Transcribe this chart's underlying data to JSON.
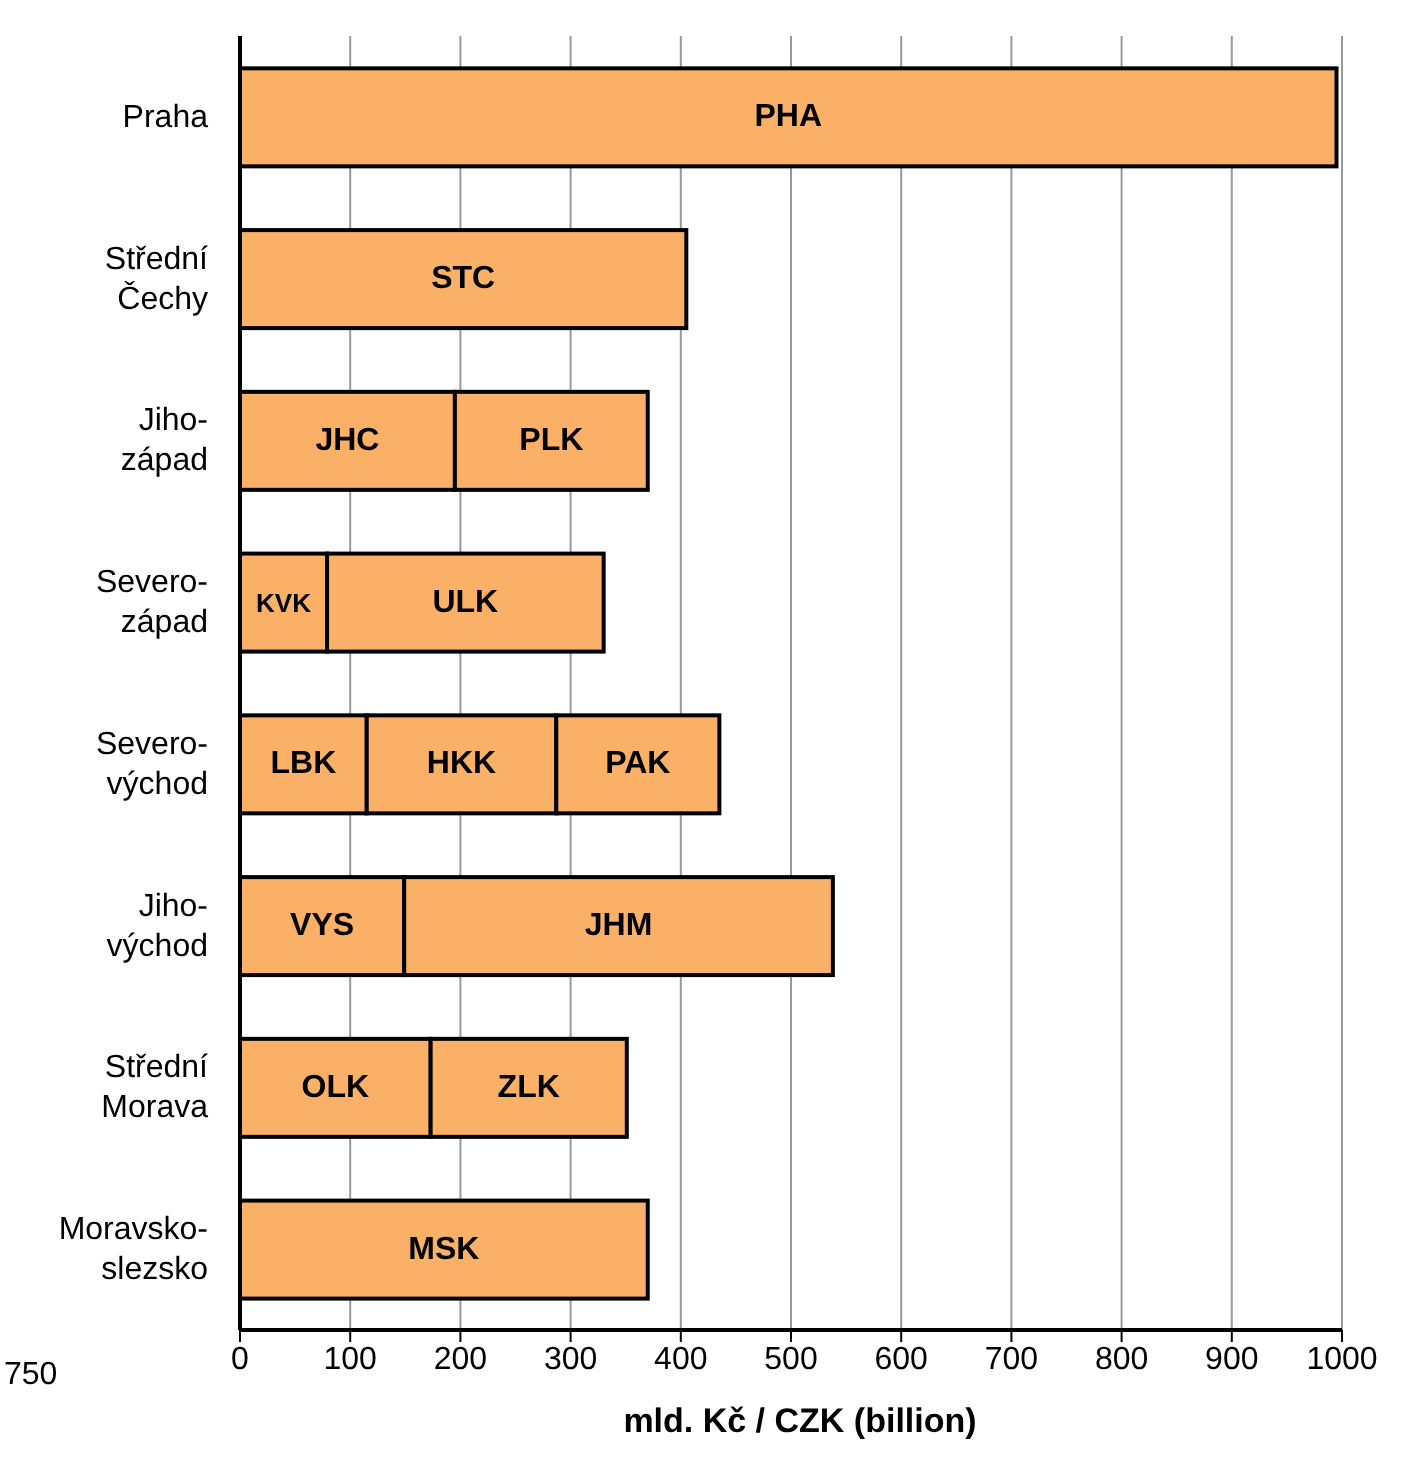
{
  "chart_data": {
    "type": "bar",
    "orientation": "horizontal",
    "stacked": true,
    "xlabel": "mld. Kč / CZK (billion)",
    "categories": [
      "Praha",
      "Střední Čechy",
      "Jiho- západ",
      "Severo- západ",
      "Severo- východ",
      "Jiho- východ",
      "Střední Morava",
      "Moravsko- slezsko"
    ],
    "series": [
      {
        "color": "#fbb068",
        "values": [
          995,
          405,
          195,
          79,
          115,
          149,
          173,
          370
        ],
        "value_labels": [
          "PHA",
          "STC",
          "JHC",
          "KVK",
          "LBK",
          "VYS",
          "OLK",
          "MSK"
        ]
      },
      {
        "color": "#fbb068",
        "values": [
          null,
          null,
          175,
          251,
          172,
          389,
          178,
          null
        ],
        "value_labels": [
          null,
          null,
          "PLK",
          "ULK",
          "HKK",
          "JHM",
          "ZLK",
          null
        ]
      },
      {
        "color": "#fbb068",
        "values": [
          null,
          null,
          null,
          null,
          148,
          null,
          null,
          null
        ],
        "value_labels": [
          null,
          null,
          null,
          null,
          "PAK",
          null,
          null,
          null
        ]
      }
    ],
    "xlim": [
      0,
      1000
    ],
    "xticks": [
      0,
      100,
      200,
      300,
      400,
      500,
      600,
      700,
      800,
      900,
      1000
    ],
    "grid": "x",
    "legend": false,
    "annotations": [
      "750"
    ]
  }
}
